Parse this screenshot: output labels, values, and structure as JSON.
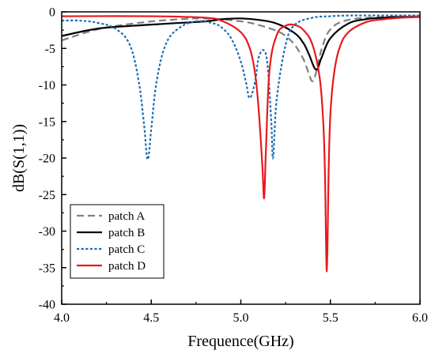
{
  "chart_data": {
    "type": "line",
    "title": "",
    "xlabel": "Frequence(GHz)",
    "ylabel": "dB(S(1,1))",
    "xlim": [
      4.0,
      6.0
    ],
    "ylim": [
      -40,
      0
    ],
    "xticks": [
      "4.0",
      "4.5",
      "5.0",
      "5.5",
      "6.0"
    ],
    "yticks": [
      "0",
      "-5",
      "-10",
      "-15",
      "-20",
      "-25",
      "-30",
      "-35",
      "-40"
    ],
    "grid": false,
    "legend_position": "bottom-left",
    "series": [
      {
        "name": "patch A",
        "color": "#808080",
        "style": "dashed",
        "x": [
          4.0,
          4.2,
          4.4,
          4.6,
          4.8,
          5.0,
          5.1,
          5.2,
          5.25,
          5.3,
          5.35,
          5.38,
          5.4,
          5.42,
          5.45,
          5.5,
          5.6,
          5.8,
          6.0
        ],
        "y": [
          -3.9,
          -2.4,
          -1.6,
          -1.1,
          -0.9,
          -1.3,
          -1.8,
          -2.6,
          -3.3,
          -4.5,
          -6.5,
          -8.5,
          -9.5,
          -8.3,
          -5.2,
          -2.4,
          -1.1,
          -0.7,
          -0.6
        ]
      },
      {
        "name": "patch B",
        "color": "#000000",
        "style": "solid",
        "x": [
          4.0,
          4.2,
          4.4,
          4.6,
          4.8,
          4.9,
          5.0,
          5.1,
          5.2,
          5.3,
          5.35,
          5.38,
          5.42,
          5.45,
          5.5,
          5.6,
          5.7,
          5.8,
          5.9,
          6.0
        ],
        "y": [
          -3.3,
          -2.3,
          -1.9,
          -1.6,
          -1.3,
          -1.0,
          -0.9,
          -1.1,
          -1.6,
          -2.9,
          -4.3,
          -5.8,
          -7.9,
          -6.3,
          -3.6,
          -1.6,
          -1.0,
          -0.8,
          -0.7,
          -0.7
        ]
      },
      {
        "name": "patch C",
        "color": "#1f6fb2",
        "style": "dotted",
        "x": [
          4.0,
          4.1,
          4.2,
          4.3,
          4.38,
          4.43,
          4.46,
          4.48,
          4.5,
          4.53,
          4.58,
          4.65,
          4.75,
          4.85,
          4.9,
          4.95,
          5.0,
          5.03,
          5.05,
          5.08,
          5.1,
          5.13,
          5.15,
          5.17,
          5.18,
          5.2,
          5.25,
          5.3,
          5.4,
          5.5,
          5.6,
          5.8,
          6.0
        ],
        "y": [
          -1.2,
          -1.2,
          -1.5,
          -2.3,
          -4.5,
          -9.5,
          -15.5,
          -20.2,
          -16.0,
          -9.5,
          -4.5,
          -2.3,
          -1.3,
          -1.6,
          -2.3,
          -3.8,
          -6.8,
          -9.8,
          -11.8,
          -9.5,
          -6.2,
          -5.3,
          -7.5,
          -15.0,
          -20.0,
          -12.0,
          -4.5,
          -1.8,
          -0.8,
          -0.6,
          -0.5,
          -0.5,
          -0.5
        ]
      },
      {
        "name": "patch D",
        "color": "#e8191c",
        "style": "solid",
        "x": [
          4.0,
          4.5,
          4.8,
          4.9,
          5.0,
          5.05,
          5.08,
          5.1,
          5.12,
          5.13,
          5.14,
          5.16,
          5.2,
          5.25,
          5.3,
          5.35,
          5.4,
          5.44,
          5.46,
          5.47,
          5.48,
          5.49,
          5.5,
          5.52,
          5.55,
          5.6,
          5.7,
          5.8,
          5.9,
          6.0
        ],
        "y": [
          -0.6,
          -0.6,
          -0.8,
          -1.3,
          -2.8,
          -5.0,
          -8.5,
          -13.5,
          -21.0,
          -25.5,
          -19.0,
          -8.0,
          -3.2,
          -1.9,
          -1.8,
          -2.5,
          -4.5,
          -9.0,
          -15.0,
          -22.5,
          -35.5,
          -22.0,
          -14.0,
          -8.5,
          -5.0,
          -2.8,
          -1.4,
          -1.0,
          -0.8,
          -0.7
        ]
      }
    ]
  }
}
